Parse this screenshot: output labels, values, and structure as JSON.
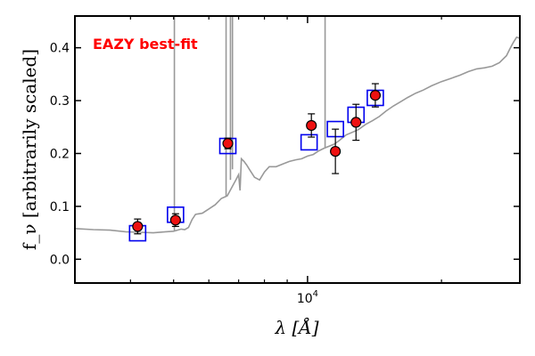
{
  "chart_data": {
    "type": "scatter",
    "title": "",
    "xlabel": "λ [Å]",
    "ylabel": "f_ν [arbitrarily scaled]",
    "x_scale": "log",
    "xlim": [
      3000,
      30000
    ],
    "ylim": [
      -0.045,
      0.46
    ],
    "x_ticks": [
      {
        "value": 10000,
        "label": "10^4"
      }
    ],
    "y_ticks": [
      {
        "value": 0.0,
        "label": "0.0"
      },
      {
        "value": 0.1,
        "label": "0.1"
      },
      {
        "value": 0.2,
        "label": "0.2"
      },
      {
        "value": 0.3,
        "label": "0.3"
      },
      {
        "value": 0.4,
        "label": "0.4"
      }
    ],
    "grid": false,
    "annotation": {
      "text": "EAZY best-fit",
      "color": "#ff0000"
    },
    "colors": {
      "template": "#999999",
      "model": "#0000ee",
      "observed_fill": "#ee1111",
      "observed_edge": "#000000"
    },
    "series": [
      {
        "role": "template",
        "style": "line",
        "x": [
          3000,
          3300,
          3600,
          3900,
          4200,
          4500,
          4800,
          5000,
          5200,
          5300,
          5400,
          5500,
          5600,
          5800,
          6000,
          6200,
          6400,
          6600,
          6800,
          6900,
          7000,
          7050,
          7100,
          7200,
          7300,
          7400,
          7600,
          7800,
          8000,
          8200,
          8500,
          8800,
          9100,
          9400,
          9700,
          10000,
          10300,
          10600,
          10900,
          11200,
          11500,
          11800,
          12200,
          12600,
          13000,
          13500,
          14000,
          14500,
          15000,
          15600,
          16200,
          16800,
          17500,
          18200,
          19000,
          20000,
          21000,
          22000,
          23000,
          24000,
          25000,
          26000,
          27000,
          28000,
          28500,
          29000,
          29500,
          30000
        ],
        "y": [
          0.058,
          0.056,
          0.055,
          0.052,
          0.051,
          0.05,
          0.052,
          0.053,
          0.057,
          0.056,
          0.06,
          0.075,
          0.085,
          0.087,
          0.095,
          0.103,
          0.115,
          0.12,
          0.14,
          0.15,
          0.16,
          0.13,
          0.19,
          0.185,
          0.178,
          0.17,
          0.155,
          0.15,
          0.165,
          0.175,
          0.175,
          0.18,
          0.185,
          0.188,
          0.19,
          0.195,
          0.198,
          0.205,
          0.21,
          0.214,
          0.218,
          0.225,
          0.235,
          0.24,
          0.245,
          0.255,
          0.262,
          0.27,
          0.28,
          0.29,
          0.298,
          0.306,
          0.314,
          0.32,
          0.328,
          0.336,
          0.342,
          0.348,
          0.355,
          0.36,
          0.362,
          0.365,
          0.372,
          0.385,
          0.398,
          0.41,
          0.42,
          0.418
        ]
      },
      {
        "role": "template-lines",
        "style": "vline",
        "x": [
          5020,
          6560,
          6710,
          6780,
          10950
        ],
        "y": [
          0.053,
          0.12,
          0.15,
          0.17,
          0.212
        ]
      },
      {
        "role": "model",
        "style": "square",
        "x": [
          4150,
          5050,
          6620,
          10080,
          11550,
          12850,
          14200
        ],
        "y": [
          0.05,
          0.085,
          0.215,
          0.222,
          0.247,
          0.274,
          0.306
        ]
      },
      {
        "role": "observed",
        "style": "circle",
        "x": [
          4150,
          5050,
          6620,
          10200,
          11550,
          12850,
          14200
        ],
        "y": [
          0.062,
          0.074,
          0.219,
          0.253,
          0.204,
          0.259,
          0.31
        ],
        "err": [
          0.014,
          0.012,
          0.01,
          0.022,
          0.042,
          0.034,
          0.022
        ]
      }
    ]
  }
}
